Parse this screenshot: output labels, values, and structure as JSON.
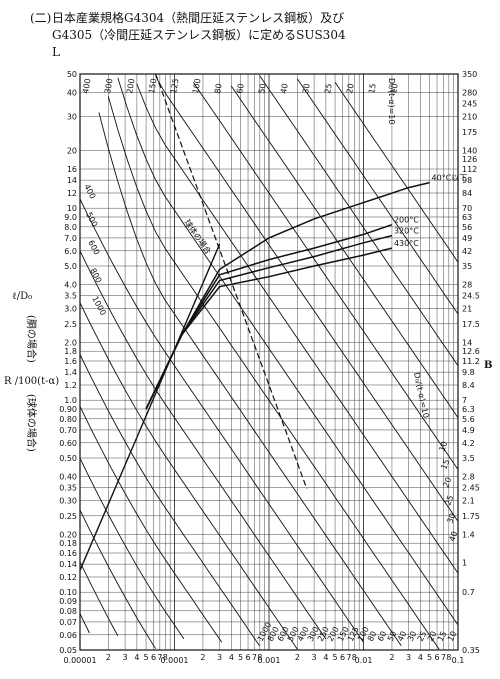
{
  "caption": {
    "number": "(二)",
    "line1": "日本産業規格G4304（熱間圧延ステンレス鋼板）及び",
    "line2": "G4305（冷間圧延ステンレス鋼板）に定めるSUS304",
    "line3": "L"
  },
  "chart_data": {
    "type": "line",
    "x_scale": "log",
    "y_scale": "log",
    "xlim": [
      1e-05,
      0.1
    ],
    "ylim": [
      0.05,
      50
    ],
    "right_ylim": [
      0.35,
      350
    ],
    "grid": true,
    "y_ticks": [
      "50",
      "40",
      "30",
      "20",
      "16",
      "14",
      "12",
      "10",
      "9.0",
      "8.0",
      "7.0",
      "6.0",
      "5.0",
      "4.0",
      "3.5",
      "3.0",
      "2.5",
      "2.0",
      "1.8",
      "1.6",
      "1.4",
      "1.2",
      "1.0",
      "0.90",
      "0.80",
      "0.70",
      "0.60",
      "0.50",
      "0.40",
      "0.35",
      "0.30",
      "0.25",
      "0.20",
      "0.18",
      "0.16",
      "0.14",
      "0.12",
      "0.10",
      "0.09",
      "0.08",
      "0.07",
      "0.06",
      "0.05"
    ],
    "y_tick_values": [
      50,
      40,
      30,
      20,
      16,
      14,
      12,
      10,
      9,
      8,
      7,
      6,
      5,
      4,
      3.5,
      3,
      2.5,
      2,
      1.8,
      1.6,
      1.4,
      1.2,
      1,
      0.9,
      0.8,
      0.7,
      0.6,
      0.5,
      0.4,
      0.35,
      0.3,
      0.25,
      0.2,
      0.18,
      0.16,
      0.14,
      0.12,
      0.1,
      0.09,
      0.08,
      0.07,
      0.06,
      0.05
    ],
    "right_ticks": [
      "350",
      "280",
      "245",
      "210",
      "175",
      "140",
      "126",
      "112",
      "98",
      "84",
      "70",
      "63",
      "56",
      "49",
      "42",
      "35",
      "28",
      "24.5",
      "21",
      "17.5",
      "14",
      "12.6",
      "11.2",
      "9.8",
      "8.4",
      "7",
      "6.3",
      "5.6",
      "4.9",
      "4.2",
      "3.5",
      "2.8",
      "2.45",
      "2.1",
      "1.75",
      "1.4",
      "1",
      "0.7",
      "0.35"
    ],
    "right_tick_values": [
      350,
      280,
      245,
      210,
      175,
      140,
      126,
      112,
      98,
      84,
      70,
      63,
      56,
      49,
      42,
      35,
      28,
      24.5,
      21,
      17.5,
      14,
      12.6,
      11.2,
      9.8,
      8.4,
      7,
      6.3,
      5.6,
      4.9,
      4.2,
      3.5,
      2.8,
      2.45,
      2.1,
      1.75,
      1.4,
      1,
      0.7,
      0.35
    ],
    "x_major_labels": [
      "0.00001",
      "0.0001",
      "0.001",
      "0.01",
      "0.1"
    ],
    "x_major_values": [
      1e-05,
      0.0001,
      0.001,
      0.01,
      0.1
    ],
    "x_minor_labels": [
      "2",
      "3",
      "4",
      "5",
      "6",
      "7",
      "8"
    ],
    "left_label_1": "ℓ/D₀",
    "left_label_2": "(胴の場合)",
    "left_label_3": "R /100(t-α)",
    "left_label_4": "(球体の場合)",
    "right_label": "B",
    "top_curve_label": "D₀/(t-α)=10",
    "mid_curve_label": "D₀/(t-α)=10",
    "dashed_label": "球体の場合",
    "temp_curves": [
      {
        "name": "40°C以下",
        "x": [
          5e-05,
          0.00012,
          0.0003,
          0.001,
          0.003,
          0.01,
          0.03,
          0.05
        ],
        "y": [
          0.9,
          2.2,
          4.8,
          7.0,
          8.8,
          10.7,
          12.8,
          13.6
        ]
      },
      {
        "name": "200°C",
        "x": [
          5e-05,
          0.00012,
          0.0003,
          0.001,
          0.003,
          0.01,
          0.02
        ],
        "y": [
          0.9,
          2.2,
          4.5,
          5.4,
          6.2,
          7.3,
          8.2
        ]
      },
      {
        "name": "320°C",
        "x": [
          5e-05,
          0.00012,
          0.0003,
          0.001,
          0.003,
          0.01,
          0.02
        ],
        "y": [
          0.9,
          2.2,
          4.2,
          4.9,
          5.6,
          6.6,
          7.2
        ]
      },
      {
        "name": "430°C",
        "x": [
          5e-05,
          0.00012,
          0.0003,
          0.001,
          0.003,
          0.01,
          0.02
        ],
        "y": [
          0.9,
          2.2,
          3.9,
          4.4,
          5.0,
          5.7,
          6.2
        ]
      }
    ],
    "diagonal_line": {
      "x": [
        1e-05,
        0.0003
      ],
      "y": [
        0.13,
        6.5
      ]
    },
    "family_top_labels": [
      "400",
      "300",
      "200",
      "150",
      "125",
      "100",
      "80",
      "60",
      "50",
      "40",
      "30",
      "25",
      "20",
      "15",
      "10"
    ],
    "family_bottom_labels": [
      "1000",
      "800",
      "600",
      "500",
      "400",
      "300",
      "250",
      "200",
      "150",
      "125",
      "100",
      "80",
      "60",
      "50",
      "40",
      "30",
      "25",
      "20",
      "15",
      "10"
    ],
    "family_right_labels": [
      "10",
      "15",
      "20",
      "25",
      "30",
      "40"
    ],
    "family_left_labels": [
      "400",
      "500",
      "600",
      "800",
      "1000"
    ]
  }
}
